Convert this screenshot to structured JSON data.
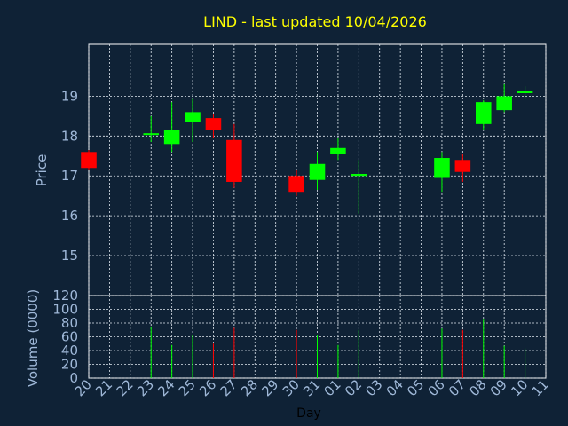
{
  "chart_data": {
    "type": "candlestick",
    "title": "LIND - last updated 10/04/2026",
    "xlabel": "Day",
    "ylabel_price": "Price",
    "ylabel_volume": "Volume (0000)",
    "price_ylim": [
      14,
      20.3
    ],
    "price_ticks": [
      "15",
      "16",
      "17",
      "18",
      "19"
    ],
    "volume_ylim": [
      0,
      120
    ],
    "volume_ticks": [
      "0",
      "20",
      "40",
      "60",
      "80",
      "100",
      "120"
    ],
    "grid": true,
    "categories": [
      "20",
      "21",
      "22",
      "23",
      "24",
      "25",
      "26",
      "27",
      "28",
      "29",
      "30",
      "31",
      "01",
      "02",
      "03",
      "04",
      "05",
      "06",
      "07",
      "08",
      "09",
      "10",
      "11"
    ],
    "candles": [
      {
        "day": "20",
        "open": 17.6,
        "close": 17.2,
        "high": 17.65,
        "low": 17.15,
        "volume": 0
      },
      {
        "day": "23",
        "open": 18.05,
        "close": 18.07,
        "high": 18.5,
        "low": 17.85,
        "volume": 75
      },
      {
        "day": "24",
        "open": 17.8,
        "close": 18.15,
        "high": 18.85,
        "low": 17.6,
        "volume": 48
      },
      {
        "day": "25",
        "open": 18.35,
        "close": 18.6,
        "high": 18.95,
        "low": 17.85,
        "volume": 62
      },
      {
        "day": "26",
        "open": 18.45,
        "close": 18.15,
        "high": 18.55,
        "low": 17.95,
        "volume": 50
      },
      {
        "day": "27",
        "open": 17.9,
        "close": 16.85,
        "high": 18.3,
        "low": 16.7,
        "volume": 73
      },
      {
        "day": "30",
        "open": 17.0,
        "close": 16.6,
        "high": 17.15,
        "low": 16.5,
        "volume": 70
      },
      {
        "day": "31",
        "open": 16.9,
        "close": 17.3,
        "high": 17.6,
        "low": 16.65,
        "volume": 62
      },
      {
        "day": "01",
        "open": 17.55,
        "close": 17.7,
        "high": 17.95,
        "low": 17.4,
        "volume": 48
      },
      {
        "day": "02",
        "open": 17.0,
        "close": 17.05,
        "high": 17.4,
        "low": 16.05,
        "volume": 70
      },
      {
        "day": "06",
        "open": 16.95,
        "close": 17.45,
        "high": 17.6,
        "low": 16.6,
        "volume": 72
      },
      {
        "day": "07",
        "open": 17.4,
        "close": 17.1,
        "high": 17.55,
        "low": 16.85,
        "volume": 70
      },
      {
        "day": "08",
        "open": 18.3,
        "close": 18.85,
        "high": 18.9,
        "low": 18.15,
        "volume": 85
      },
      {
        "day": "09",
        "open": 18.65,
        "close": 19.0,
        "high": 19.3,
        "low": 18.6,
        "volume": 47
      },
      {
        "day": "10",
        "open": 19.1,
        "close": 19.12,
        "high": 19.25,
        "low": 18.95,
        "volume": 43
      }
    ],
    "colors": {
      "background": "#0f2236",
      "grid": "#dfe7ef",
      "frame": "#ffffff",
      "up": "#00ff00",
      "down": "#ff0000",
      "title": "#ffff00",
      "tick": "#9fb8d8"
    }
  }
}
